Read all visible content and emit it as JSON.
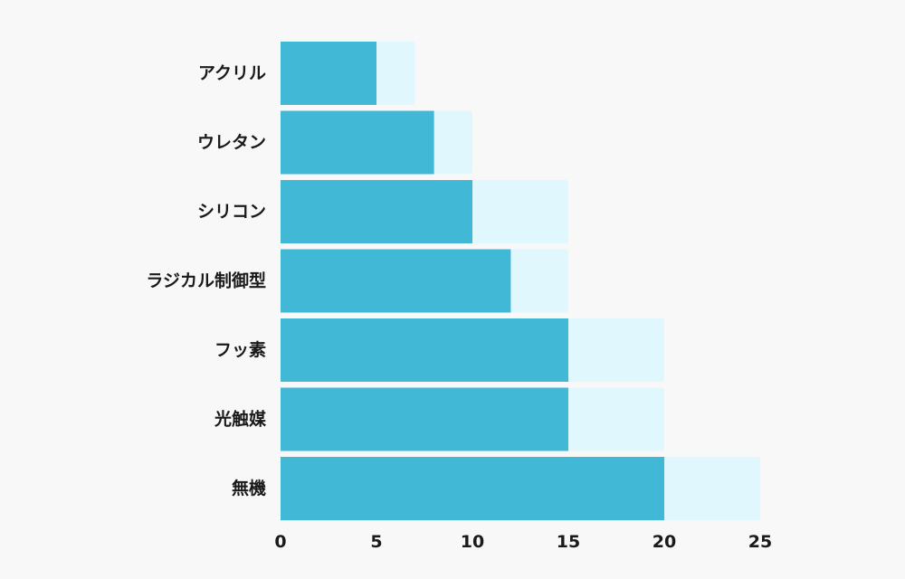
{
  "chart_data": {
    "type": "bar",
    "orientation": "horizontal",
    "stacked": false,
    "categories": [
      "アクリル",
      "ウレタン",
      "シリコン",
      "ラジカル制御型",
      "フッ素",
      "光触媒",
      "無機"
    ],
    "series": [
      {
        "values": [
          5,
          8,
          10,
          12,
          15,
          15,
          20
        ],
        "color": "#42b8d7"
      },
      {
        "values": [
          7,
          10,
          15,
          15,
          20,
          20,
          25
        ],
        "color": "#dff7fd"
      }
    ],
    "xlim": [
      0,
      25
    ],
    "xticks": [
      0,
      5,
      10,
      15,
      20,
      25
    ],
    "xlabel": "",
    "ylabel": "",
    "title": "",
    "grid": false,
    "legend": "none"
  }
}
